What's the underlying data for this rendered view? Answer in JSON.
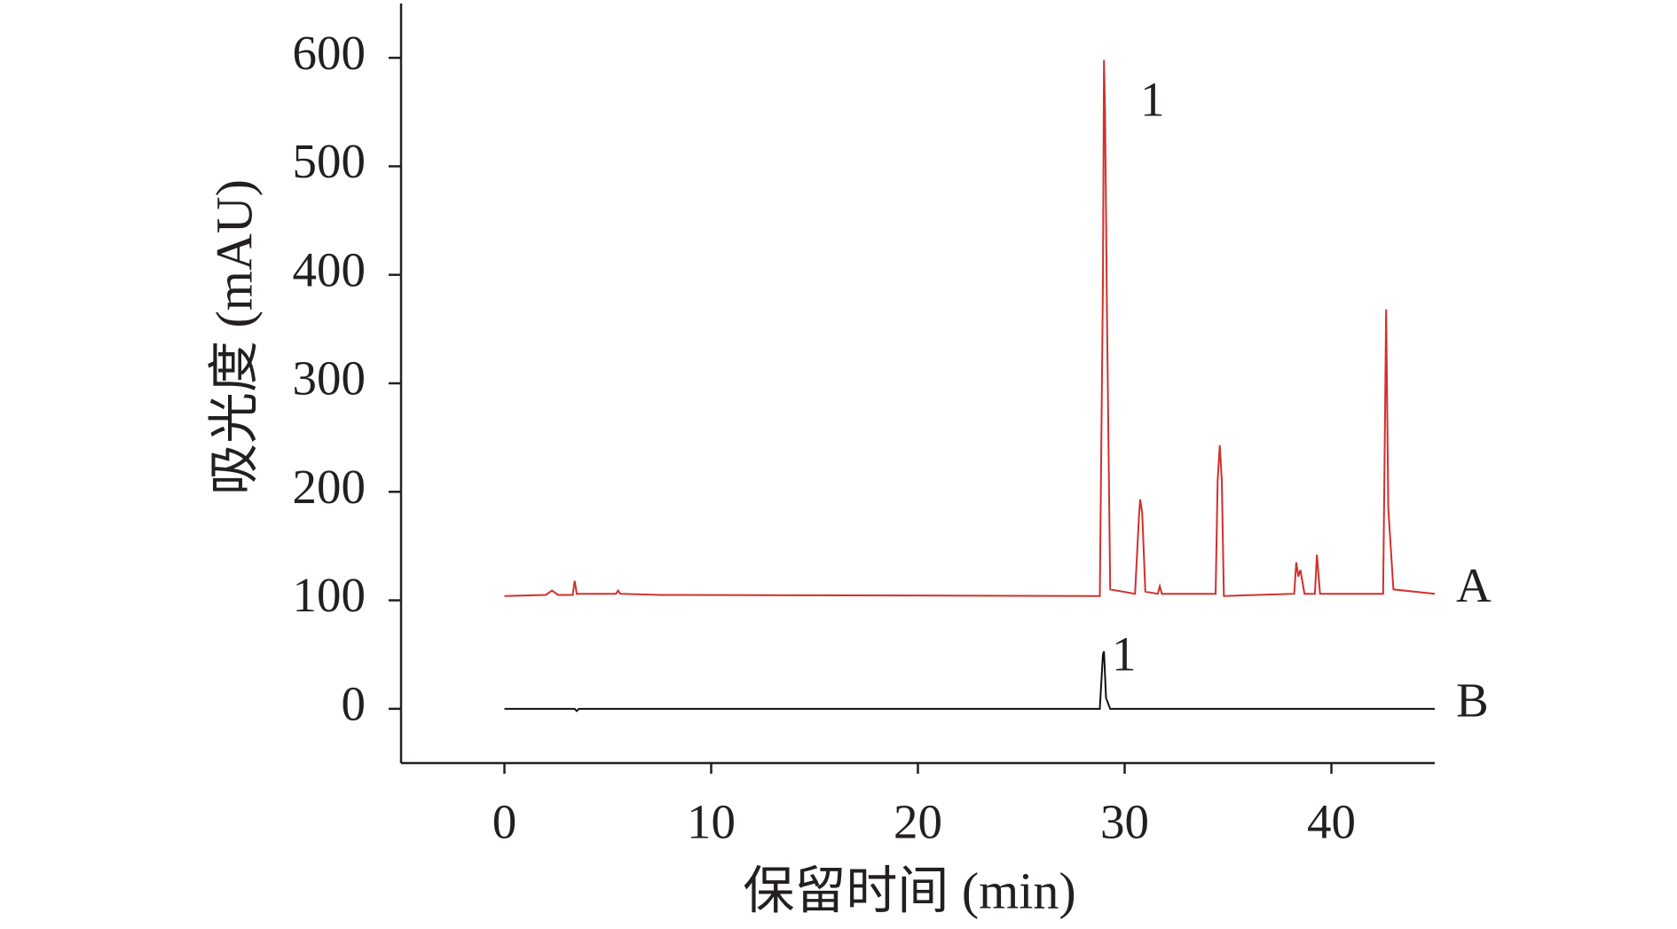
{
  "chart_data": {
    "type": "line",
    "xlabel": "保留时间 (min)",
    "ylabel": "吸光度 (mAU)",
    "xlim": [
      -5,
      45
    ],
    "ylim": [
      -50,
      650
    ],
    "xticks": [
      0,
      10,
      20,
      30,
      40
    ],
    "yticks": [
      0,
      100,
      200,
      300,
      400,
      500,
      600
    ],
    "series": [
      {
        "name": "A",
        "color": "#d0312d",
        "x": [
          0,
          2.0,
          2.3,
          2.6,
          3.3,
          3.4,
          3.5,
          5.4,
          5.5,
          5.6,
          7.5,
          28.8,
          28.95,
          29.0,
          29.05,
          29.15,
          29.3,
          30.5,
          30.7,
          30.75,
          30.85,
          31.0,
          31.6,
          31.7,
          31.8,
          34.4,
          34.5,
          34.6,
          34.7,
          34.8,
          38.2,
          38.3,
          38.4,
          38.5,
          38.7,
          39.2,
          39.3,
          39.45,
          42.5,
          42.6,
          42.65,
          42.75,
          43.0,
          45
        ],
        "values": [
          104,
          105,
          109,
          105,
          105,
          118,
          106,
          106,
          109,
          106,
          105,
          104,
          392,
          598,
          550,
          355,
          110,
          106,
          180,
          193,
          180,
          108,
          106,
          113,
          106,
          106,
          210,
          243,
          210,
          104,
          106,
          135,
          122,
          128,
          106,
          106,
          142,
          106,
          106,
          280,
          368,
          185,
          110,
          106
        ]
      },
      {
        "name": "B",
        "color": "#111111",
        "x": [
          0,
          3.4,
          3.5,
          3.6,
          28.8,
          28.95,
          29.0,
          29.1,
          29.3,
          45
        ],
        "values": [
          0,
          0,
          -2,
          0,
          0,
          50,
          53,
          10,
          0,
          0
        ]
      }
    ],
    "annotations": [
      {
        "text": "1"
      },
      {
        "text": "1"
      }
    ]
  }
}
